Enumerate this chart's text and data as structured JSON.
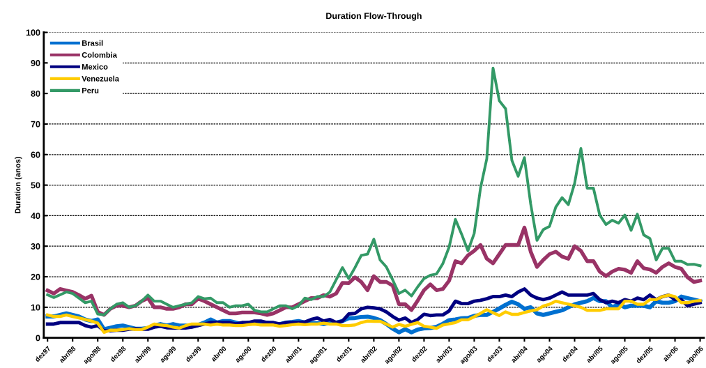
{
  "chart_data": {
    "type": "line",
    "title": "Duration Flow-Through",
    "ylabel": "Duration (anos)",
    "categories": [
      "dez97",
      null,
      null,
      null,
      "abr/98",
      null,
      null,
      null,
      "ago/98",
      null,
      null,
      null,
      "dez98",
      null,
      null,
      null,
      "abr/99",
      null,
      null,
      null,
      "ago99",
      null,
      null,
      null,
      "dez99",
      null,
      null,
      null,
      "abr00",
      null,
      null,
      null,
      "ago00",
      null,
      null,
      null,
      "dez00",
      null,
      null,
      null,
      "abr/01",
      null,
      null,
      null,
      "ago/01",
      null,
      null,
      null,
      "dez01",
      null,
      null,
      null,
      "abr/02",
      null,
      null,
      null,
      "ago/02",
      null,
      null,
      null,
      "dez02",
      null,
      null,
      null,
      "abr/03",
      null,
      null,
      null,
      "ago/03",
      null,
      null,
      null,
      "dez03",
      null,
      null,
      null,
      "abr/04",
      null,
      null,
      null,
      "ago04",
      null,
      null,
      null,
      "dez04",
      null,
      null,
      null,
      "abr/05",
      null,
      null,
      null,
      "ago/05",
      null,
      null,
      null,
      "dez/05",
      null,
      null,
      null,
      "abr06",
      null,
      null,
      null,
      "ago/06"
    ],
    "series": [
      {
        "name": "Brasil",
        "color": "#0070d0",
        "values": [
          7,
          7,
          7.5,
          8,
          7.5,
          7,
          6,
          5.5,
          6,
          2.8,
          3.3,
          3.8,
          4,
          3.5,
          3,
          3,
          3.2,
          4,
          4.5,
          4,
          4.5,
          4,
          4,
          3.8,
          4.2,
          5,
          6,
          5,
          5.5,
          5.5,
          5,
          4.5,
          5,
          5,
          5,
          5,
          4.5,
          4.5,
          5,
          5.2,
          5.5,
          5,
          4.8,
          4.8,
          4.5,
          5,
          5,
          5.5,
          6.4,
          6.5,
          6.8,
          6.9,
          6.5,
          5.8,
          4.5,
          3,
          1.8,
          2.8,
          1.8,
          2.7,
          3.1,
          3.2,
          3.6,
          4.6,
          5.8,
          6,
          6.4,
          6.5,
          7.2,
          7.5,
          7.5,
          8.5,
          9.6,
          10.8,
          11.8,
          11,
          9.5,
          10,
          8,
          7.5,
          8,
          8.5,
          9,
          10,
          11,
          11.5,
          12,
          13,
          12,
          12,
          10,
          11,
          10,
          10.5,
          10.5,
          10.5,
          10,
          12,
          11.5,
          11.5,
          12,
          13.5,
          13,
          12.5,
          12
        ]
      },
      {
        "name": "Colombia",
        "color": "#993366",
        "values": [
          15.5,
          14.5,
          16,
          15.5,
          15,
          14,
          12.8,
          13.8,
          8.5,
          7.5,
          9.5,
          10.5,
          10.5,
          10,
          10.5,
          12,
          13,
          10,
          10,
          9.5,
          9.5,
          10,
          11,
          11,
          12.8,
          12,
          11,
          10,
          9,
          8,
          8,
          8.3,
          8.3,
          8.3,
          8,
          7.5,
          8,
          9,
          10,
          10,
          11,
          12,
          13,
          13,
          14,
          13.5,
          14.5,
          18,
          17.9,
          19.8,
          18.3,
          15.6,
          20.2,
          18.3,
          18.3,
          17.1,
          11,
          11,
          9.1,
          12.2,
          15.6,
          17.5,
          15.6,
          16,
          18.7,
          25.1,
          24.4,
          27,
          28.5,
          30.4,
          25.9,
          24.4,
          27.4,
          30.4,
          30.4,
          30.4,
          36.1,
          28.2,
          23.2,
          25.5,
          27.4,
          28.2,
          26.6,
          25.9,
          30,
          28.5,
          25.1,
          25.1,
          21.7,
          20.2,
          21.7,
          22.6,
          22.3,
          21.3,
          25.1,
          22.8,
          22.4,
          21.3,
          23.2,
          24.4,
          23.2,
          22.6,
          19.8,
          18.3,
          18.7
        ]
      },
      {
        "name": "Mexico",
        "color": "#000080",
        "values": [
          4.5,
          4.5,
          5,
          5,
          5,
          5,
          4,
          3.5,
          4,
          2.3,
          2.3,
          2.5,
          2.5,
          2.8,
          3,
          2.8,
          2.8,
          3.5,
          3.8,
          3.3,
          3.2,
          3.2,
          3.2,
          3.5,
          4,
          4.5,
          5,
          5,
          5,
          5,
          4.5,
          5,
          5,
          5.5,
          5.5,
          5,
          5,
          4.5,
          5,
          5,
          5,
          5.2,
          6,
          6.5,
          5.5,
          6,
          5,
          5.5,
          7.8,
          8,
          9.5,
          10,
          9.8,
          9.5,
          8.5,
          7,
          5.8,
          6.5,
          5,
          6,
          7.7,
          7.3,
          7.5,
          7.5,
          8.8,
          12,
          11.2,
          11.2,
          12,
          12.3,
          12.8,
          13.5,
          13.5,
          14,
          13.5,
          15,
          16,
          14,
          13,
          12.5,
          13,
          14,
          15,
          14,
          14,
          14,
          14,
          14.5,
          12.5,
          11.5,
          12,
          11.5,
          12.5,
          12,
          13,
          12.5,
          14,
          12.5,
          13.5,
          14,
          12.5,
          12.5,
          10.5,
          11,
          11.5
        ]
      },
      {
        "name": "Venezuela",
        "color": "#ffcc00",
        "values": [
          7.5,
          7,
          7,
          7.5,
          7,
          6.5,
          6,
          5.5,
          4.8,
          1.8,
          2.5,
          2.5,
          2.7,
          3,
          2.7,
          2.7,
          3.5,
          4.5,
          4.2,
          4,
          3.5,
          3.2,
          4,
          4.5,
          4.5,
          4.5,
          4.2,
          4.5,
          4.2,
          4.2,
          4,
          4,
          4.3,
          4.5,
          4.2,
          4.2,
          4.2,
          3.8,
          4,
          4.3,
          4.5,
          4.3,
          4.5,
          4.5,
          4.8,
          4.5,
          4.5,
          4,
          4,
          4.2,
          5,
          5.5,
          5.4,
          5.4,
          4.5,
          3.5,
          4.4,
          3.8,
          4.4,
          5,
          3.8,
          3.5,
          3.1,
          4.2,
          4.6,
          5,
          5.9,
          5.9,
          6.9,
          8,
          9.2,
          8.2,
          7.3,
          8.5,
          7.7,
          7.7,
          8.3,
          8.8,
          9.2,
          10.4,
          11,
          12,
          11.5,
          11,
          10.5,
          10,
          9,
          9,
          9,
          9.5,
          9.5,
          9.5,
          12,
          12,
          11,
          11,
          12.5,
          12.5,
          13.5,
          14,
          13.5,
          11.5,
          11.5,
          12,
          12.2
        ]
      },
      {
        "name": "Peru",
        "color": "#339966",
        "values": [
          14.1,
          13.2,
          14.1,
          15,
          14.5,
          13,
          11.5,
          12,
          7.8,
          7.5,
          9.5,
          11,
          11.5,
          10,
          10.5,
          12,
          14,
          12,
          12,
          11,
          10,
          10.5,
          11,
          11.5,
          13.5,
          12.8,
          13,
          11.5,
          11.5,
          10,
          10.5,
          10.5,
          11,
          9,
          8.5,
          8.5,
          9.5,
          10.5,
          10.5,
          9.5,
          10.5,
          13,
          12.5,
          13.5,
          13.5,
          15,
          19,
          23,
          19.4,
          23,
          27,
          27.4,
          32.3,
          25.5,
          23.2,
          19,
          14.5,
          15.6,
          13.7,
          16.7,
          19.4,
          20.5,
          20.9,
          24.3,
          29.7,
          38.8,
          33.9,
          28.5,
          34.2,
          49,
          58.6,
          88.3,
          77.6,
          75,
          58.1,
          52.9,
          59,
          43.8,
          31.9,
          35.4,
          36.5,
          42.8,
          45.9,
          43.6,
          50.6,
          62,
          49,
          49,
          40.2,
          37.1,
          38.5,
          37.5,
          40.2,
          35.2,
          40.5,
          33.7,
          32.5,
          25.5,
          29.3,
          29.3,
          25.1,
          25.1,
          24,
          24.1,
          23.6
        ]
      }
    ],
    "ylim": [
      0,
      100
    ],
    "yticks": [
      0,
      10,
      20,
      30,
      40,
      50,
      60,
      70,
      80,
      90,
      100
    ],
    "grid": "y",
    "legend": "top left",
    "marker": "none",
    "line_style": "solid"
  }
}
